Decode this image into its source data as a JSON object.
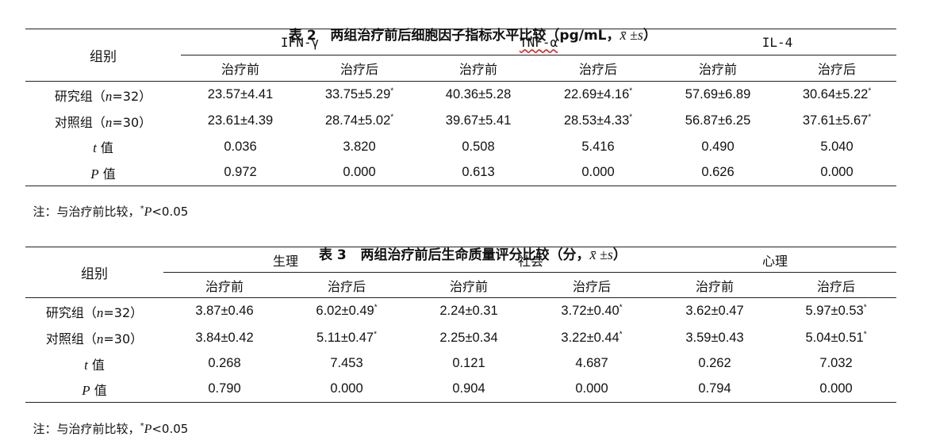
{
  "table2": {
    "caption_prefix": "表 2   两组治疗前后细胞因子指标水平比较（pg/mL，",
    "caption_stat": "x̄ ±s",
    "caption_suffix": "）",
    "group_header": "组别",
    "col_groups": [
      "IFN-γ",
      "TNF-α",
      "IL-4"
    ],
    "sub_before": "治疗前",
    "sub_after": "治疗后",
    "rows": [
      {
        "label_pre": "研究组（",
        "n": "n",
        "label_post": "=32）",
        "cells": [
          "23.57±4.41",
          "33.75±5.29",
          "40.36±5.28",
          "22.69±4.16",
          "57.69±6.89",
          "30.64±5.22"
        ],
        "stars": [
          "",
          "*",
          "",
          "*",
          "",
          "*"
        ]
      },
      {
        "label_pre": "对照组（",
        "n": "n",
        "label_post": "=30）",
        "cells": [
          "23.61±4.39",
          "28.74±5.02",
          "39.67±5.41",
          "28.53±4.33",
          "56.87±6.25",
          "37.61±5.67"
        ],
        "stars": [
          "",
          "*",
          "",
          "*",
          "",
          "*"
        ]
      },
      {
        "stat_sym": "t",
        "stat_word": "值",
        "cells": [
          "0.036",
          "3.820",
          "0.508",
          "5.416",
          "0.490",
          "5.040"
        ]
      },
      {
        "stat_sym": "P",
        "stat_word": "值",
        "cells": [
          "0.972",
          "0.000",
          "0.613",
          "0.000",
          "0.626",
          "0.000"
        ]
      }
    ],
    "note_prefix": "注：与治疗前比较，",
    "note_star": "*",
    "note_p": "P",
    "note_suffix": "<0.05"
  },
  "table3": {
    "caption_prefix": "表 3   两组治疗前后生命质量评分比较（分，",
    "caption_stat": "x̄ ±s",
    "caption_suffix": "）",
    "group_header": "组别",
    "col_groups": [
      "生理",
      "社会",
      "心理"
    ],
    "sub_before": "治疗前",
    "sub_after": "治疗后",
    "rows": [
      {
        "label_pre": "研究组（",
        "n": "n",
        "label_post": "=32）",
        "cells": [
          "3.87±0.46",
          "6.02±0.49",
          "2.24±0.31",
          "3.72±0.40",
          "3.62±0.47",
          "5.97±0.53"
        ],
        "stars": [
          "",
          "*",
          "",
          "*",
          "",
          "*"
        ]
      },
      {
        "label_pre": "对照组（",
        "n": "n",
        "label_post": "=30）",
        "cells": [
          "3.84±0.42",
          "5.11±0.47",
          "2.25±0.34",
          "3.22±0.44",
          "3.59±0.43",
          "5.04±0.51"
        ],
        "stars": [
          "",
          "*",
          "",
          "*",
          "",
          "*"
        ]
      },
      {
        "stat_sym": "t",
        "stat_word": "值",
        "cells": [
          "0.268",
          "7.453",
          "0.121",
          "4.687",
          "0.262",
          "7.032"
        ]
      },
      {
        "stat_sym": "P",
        "stat_word": "值",
        "cells": [
          "0.790",
          "0.000",
          "0.904",
          "0.000",
          "0.794",
          "0.000"
        ]
      }
    ],
    "note_prefix": "注：与治疗前比较，",
    "note_star": "*",
    "note_p": "P",
    "note_suffix": "<0.05"
  }
}
